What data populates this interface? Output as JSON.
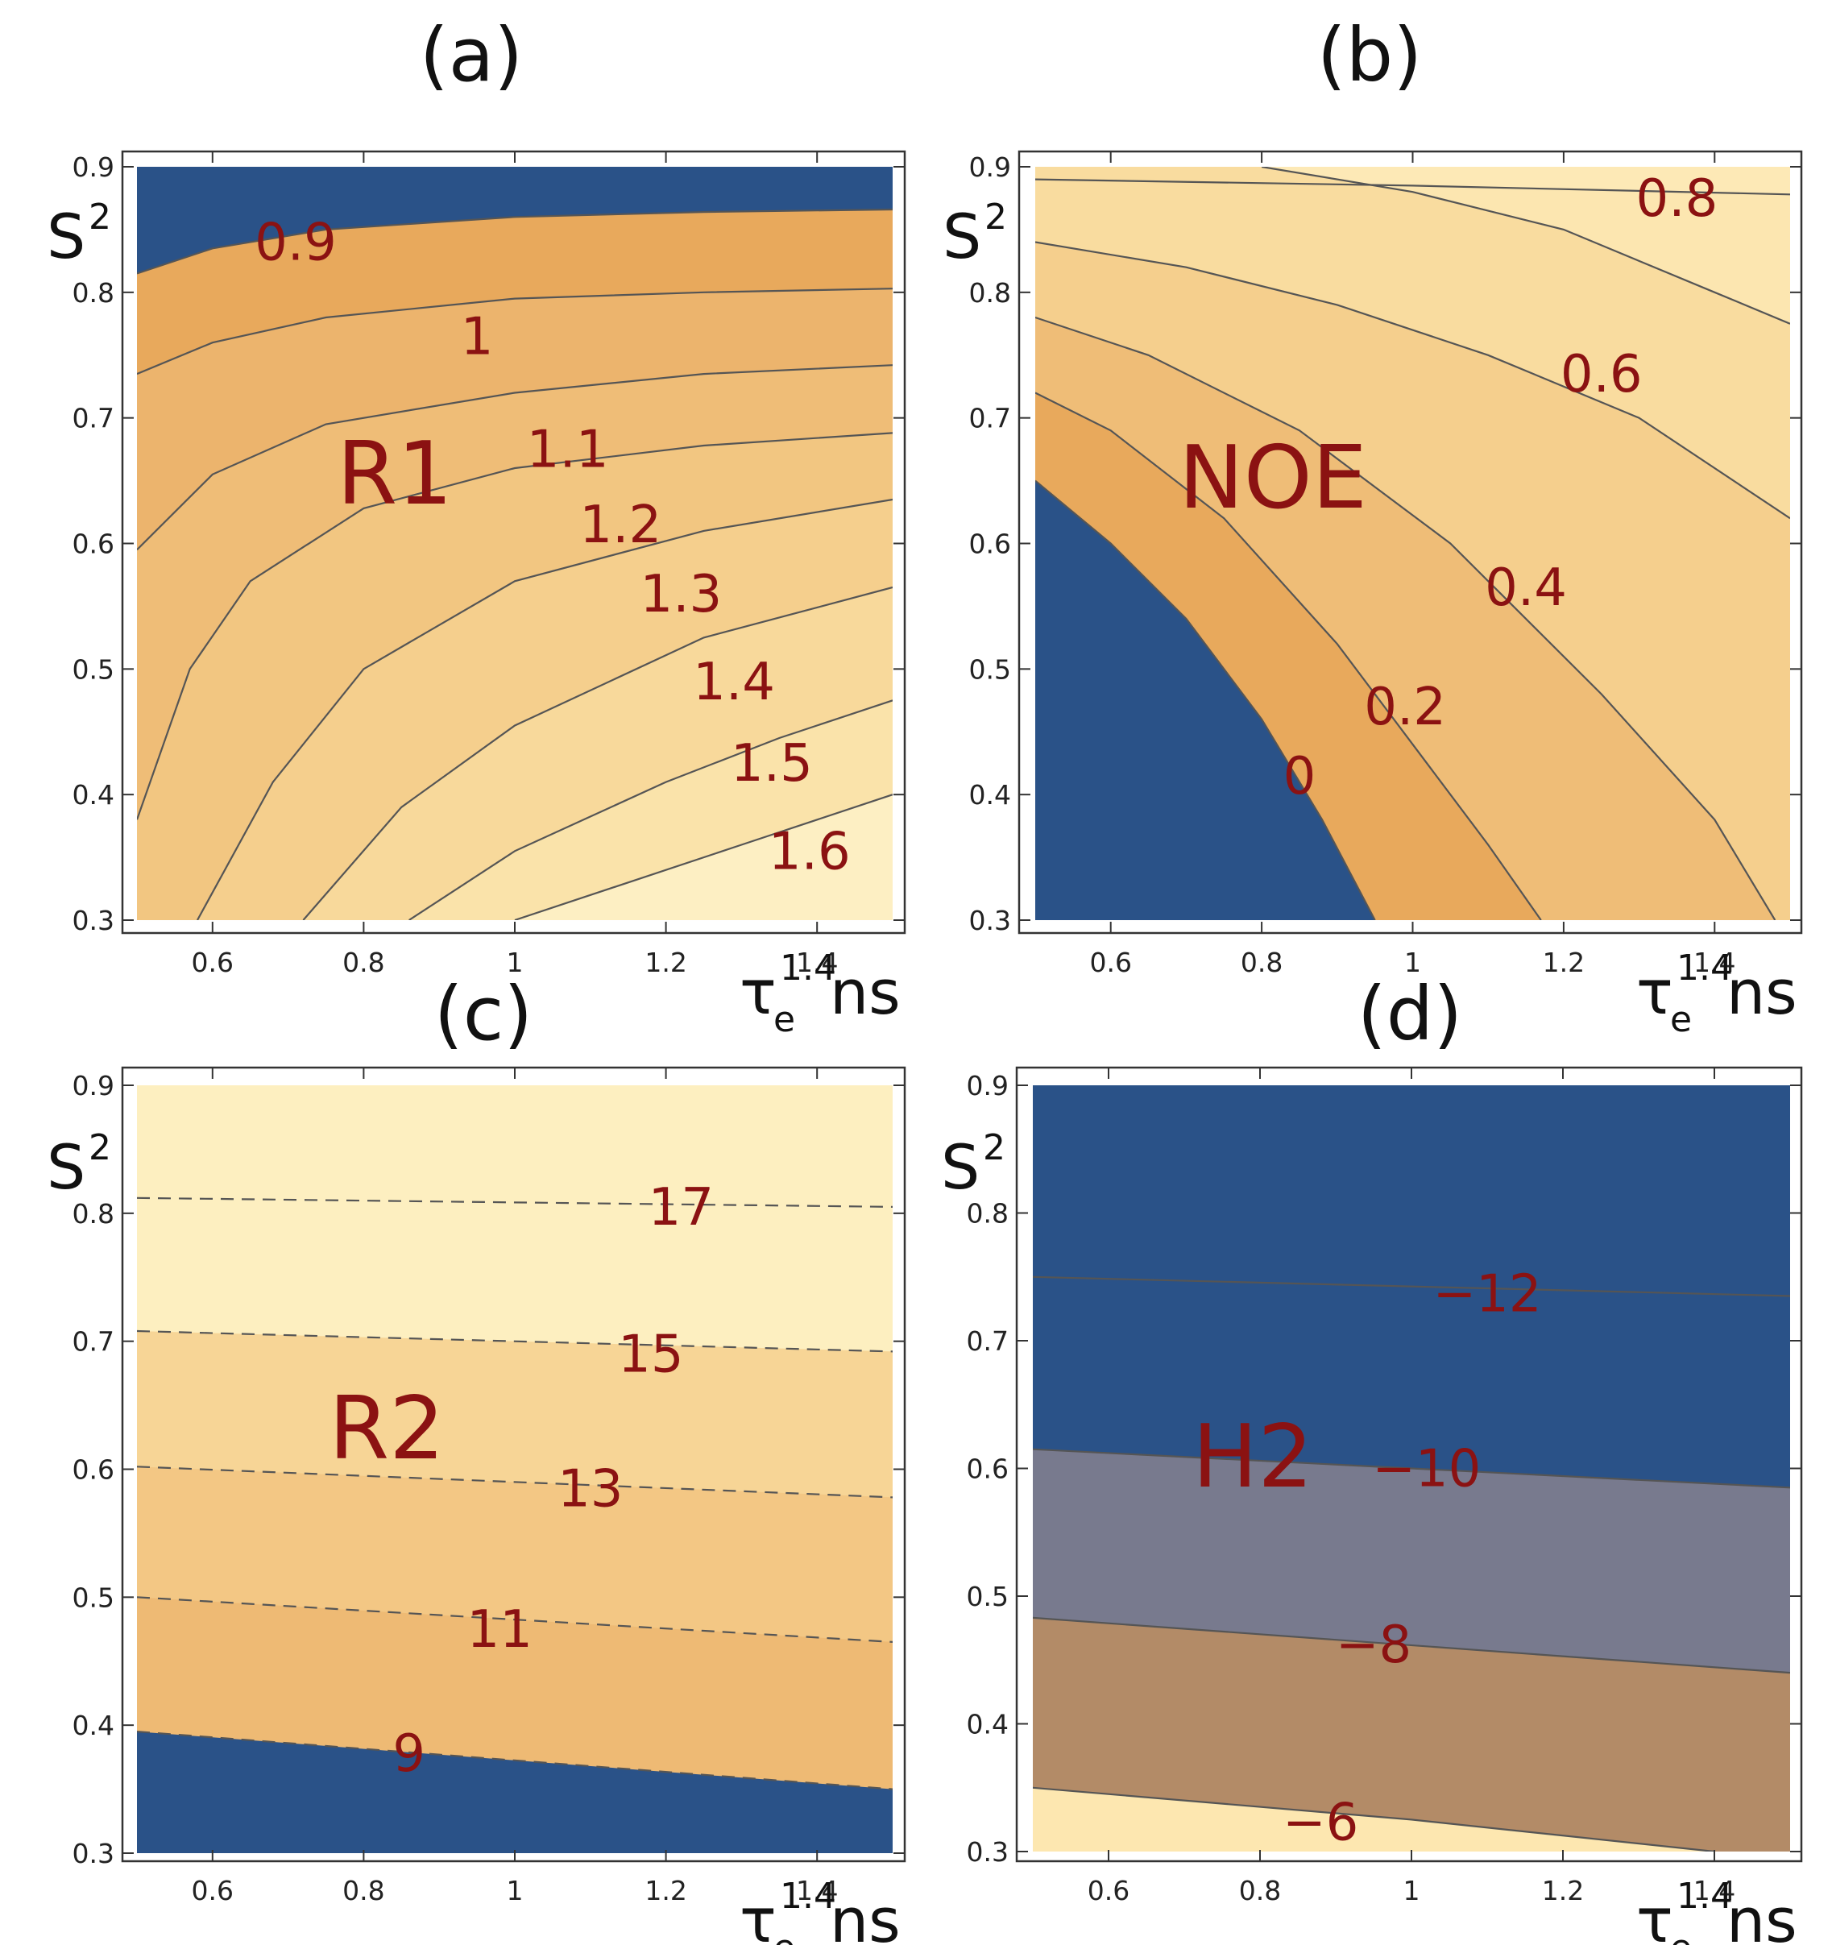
{
  "chart_data": [
    {
      "type": "contour",
      "panel": "(a)",
      "title": "R1",
      "xlabel": "τ",
      "xlabel_sub": "e",
      "xlabel_sup": "1.4",
      "xlabel_unit": "ns",
      "ylabel": "S",
      "ylabel_sup": "2",
      "xlim": [
        0.5,
        1.5
      ],
      "ylim": [
        0.3,
        0.9
      ],
      "xticks": [
        "0.6",
        "0.8",
        "1",
        "1.2",
        "1.4"
      ],
      "yticks": [
        "0.3",
        "0.4",
        "0.5",
        "0.6",
        "0.7",
        "0.8",
        "0.9"
      ],
      "line_style": "solid",
      "contours": [
        {
          "label": "0.9",
          "points": [
            [
              0.5,
              0.815
            ],
            [
              0.6,
              0.835
            ],
            [
              0.75,
              0.85
            ],
            [
              1.0,
              0.86
            ],
            [
              1.25,
              0.864
            ],
            [
              1.5,
              0.866
            ]
          ]
        },
        {
          "label": "1",
          "points": [
            [
              0.5,
              0.735
            ],
            [
              0.6,
              0.76
            ],
            [
              0.75,
              0.78
            ],
            [
              1.0,
              0.795
            ],
            [
              1.25,
              0.8
            ],
            [
              1.5,
              0.803
            ]
          ]
        },
        {
          "label": "1.1",
          "points": [
            [
              0.5,
              0.595
            ],
            [
              0.6,
              0.655
            ],
            [
              0.75,
              0.695
            ],
            [
              1.0,
              0.72
            ],
            [
              1.25,
              0.735
            ],
            [
              1.5,
              0.742
            ]
          ]
        },
        {
          "label": "1.2",
          "points": [
            [
              0.5,
              0.38
            ],
            [
              0.57,
              0.5
            ],
            [
              0.65,
              0.57
            ],
            [
              0.8,
              0.628
            ],
            [
              1.0,
              0.66
            ],
            [
              1.25,
              0.678
            ],
            [
              1.5,
              0.688
            ]
          ]
        },
        {
          "label": "1.3",
          "points": [
            [
              0.58,
              0.3
            ],
            [
              0.68,
              0.41
            ],
            [
              0.8,
              0.5
            ],
            [
              1.0,
              0.57
            ],
            [
              1.25,
              0.61
            ],
            [
              1.5,
              0.635
            ]
          ]
        },
        {
          "label": "1.4",
          "points": [
            [
              0.72,
              0.3
            ],
            [
              0.85,
              0.39
            ],
            [
              1.0,
              0.455
            ],
            [
              1.25,
              0.525
            ],
            [
              1.5,
              0.565
            ]
          ]
        },
        {
          "label": "1.5",
          "points": [
            [
              0.86,
              0.3
            ],
            [
              1.0,
              0.355
            ],
            [
              1.2,
              0.41
            ],
            [
              1.35,
              0.445
            ],
            [
              1.5,
              0.475
            ]
          ]
        },
        {
          "label": "1.6",
          "points": [
            [
              1.0,
              0.3
            ],
            [
              1.15,
              0.33
            ],
            [
              1.3,
              0.36
            ],
            [
              1.5,
              0.4
            ]
          ]
        }
      ],
      "colors": [
        "#2a5288",
        "#e8a95c",
        "#ecb46d",
        "#efbd77",
        "#f2c681",
        "#f5cf8d",
        "#f8d99b",
        "#fae3aa",
        "#fdefc3"
      ],
      "label_positions": [
        [
          0.71,
          0.84
        ],
        [
          0.95,
          0.765
        ],
        [
          1.07,
          0.675
        ],
        [
          1.14,
          0.615
        ],
        [
          1.22,
          0.56
        ],
        [
          1.29,
          0.49
        ],
        [
          1.34,
          0.425
        ],
        [
          1.39,
          0.355
        ]
      ]
    },
    {
      "type": "contour",
      "panel": "(b)",
      "title": "NOE",
      "xlabel": "τ",
      "xlabel_sub": "e",
      "xlabel_sup": "1.4",
      "xlabel_unit": "ns",
      "ylabel": "S",
      "ylabel_sup": "2",
      "xlim": [
        0.5,
        1.5
      ],
      "ylim": [
        0.3,
        0.9
      ],
      "xticks": [
        "0.6",
        "0.8",
        "1",
        "1.2",
        "1.4"
      ],
      "yticks": [
        "0.3",
        "0.4",
        "0.5",
        "0.6",
        "0.7",
        "0.8",
        "0.9"
      ],
      "line_style": "solid",
      "contours": [
        {
          "label": "0",
          "points": [
            [
              0.5,
              0.65
            ],
            [
              0.6,
              0.6
            ],
            [
              0.7,
              0.54
            ],
            [
              0.8,
              0.46
            ],
            [
              0.88,
              0.38
            ],
            [
              0.95,
              0.3
            ]
          ]
        },
        {
          "label": "0.2",
          "points": [
            [
              0.5,
              0.72
            ],
            [
              0.6,
              0.69
            ],
            [
              0.75,
              0.62
            ],
            [
              0.9,
              0.52
            ],
            [
              1.0,
              0.44
            ],
            [
              1.1,
              0.36
            ],
            [
              1.17,
              0.3
            ]
          ]
        },
        {
          "label": "",
          "points": [
            [
              0.5,
              0.78
            ],
            [
              0.65,
              0.75
            ],
            [
              0.85,
              0.69
            ],
            [
              1.05,
              0.6
            ],
            [
              1.25,
              0.48
            ],
            [
              1.4,
              0.38
            ],
            [
              1.48,
              0.3
            ]
          ]
        },
        {
          "label": "0.4",
          "points": [
            [
              0.5,
              0.84
            ],
            [
              0.7,
              0.82
            ],
            [
              0.9,
              0.79
            ],
            [
              1.1,
              0.75
            ],
            [
              1.3,
              0.7
            ],
            [
              1.5,
              0.62
            ]
          ]
        },
        {
          "label": "0.6",
          "points": [
            [
              0.8,
              0.9
            ],
            [
              1.0,
              0.88
            ],
            [
              1.2,
              0.85
            ],
            [
              1.4,
              0.8
            ],
            [
              1.5,
              0.775
            ]
          ]
        },
        {
          "label": "0.8",
          "points": [
            [
              0.5,
              0.89
            ],
            [
              1.0,
              0.885
            ],
            [
              1.5,
              0.878
            ]
          ]
        }
      ],
      "colors": [
        "#2a5288",
        "#e8a95c",
        "#efbd77",
        "#f5cf8d",
        "#f9dc9f",
        "#fce6b0",
        "#fde9b6"
      ],
      "label_positions": [
        [
          0.85,
          0.415
        ],
        [
          0.99,
          0.47
        ],
        [
          1.15,
          0.565
        ],
        [
          1.25,
          0.735
        ],
        [
          1.35,
          0.875
        ]
      ]
    },
    {
      "type": "contour",
      "panel": "(c)",
      "title": "R2",
      "xlabel": "τ",
      "xlabel_sub": "e",
      "xlabel_sup": "1.4",
      "xlabel_unit": "ns",
      "ylabel": "S",
      "ylabel_sup": "2",
      "xlim": [
        0.5,
        1.5
      ],
      "ylim": [
        0.3,
        0.9
      ],
      "xticks": [
        "0.6",
        "0.8",
        "1",
        "1.2",
        "1.4"
      ],
      "yticks": [
        "0.3",
        "0.4",
        "0.5",
        "0.6",
        "0.7",
        "0.8",
        "0.9"
      ],
      "line_style": "dashed",
      "contours": [
        {
          "label": "9",
          "points": [
            [
              0.5,
              0.395
            ],
            [
              1.5,
              0.35
            ]
          ]
        },
        {
          "label": "11",
          "points": [
            [
              0.5,
              0.5
            ],
            [
              1.5,
              0.465
            ]
          ]
        },
        {
          "label": "13",
          "points": [
            [
              0.5,
              0.602
            ],
            [
              1.5,
              0.578
            ]
          ]
        },
        {
          "label": "15",
          "points": [
            [
              0.5,
              0.708
            ],
            [
              1.5,
              0.692
            ]
          ]
        },
        {
          "label": "17",
          "points": [
            [
              0.5,
              0.812
            ],
            [
              1.5,
              0.805
            ]
          ]
        }
      ],
      "colors": [
        "#2a5288",
        "#e8a95c",
        "#eeba74",
        "#f3c784",
        "#f7d596",
        "#fdefc0"
      ],
      "label_positions": [
        [
          0.86,
          0.378
        ],
        [
          0.98,
          0.475
        ],
        [
          1.1,
          0.585
        ],
        [
          1.18,
          0.69
        ],
        [
          1.22,
          0.805
        ]
      ]
    },
    {
      "type": "contour",
      "panel": "(d)",
      "title": "H2",
      "xlabel": "τ",
      "xlabel_sub": "e",
      "xlabel_sup": "1.4",
      "xlabel_unit": "ns",
      "ylabel": "S",
      "ylabel_sup": "2",
      "xlim": [
        0.5,
        1.5
      ],
      "ylim": [
        0.3,
        0.9
      ],
      "xticks": [
        "0.6",
        "0.8",
        "1",
        "1.2",
        "1.4"
      ],
      "yticks": [
        "0.3",
        "0.4",
        "0.5",
        "0.6",
        "0.7",
        "0.8",
        "0.9"
      ],
      "line_style": "solid",
      "contours": [
        {
          "label": "−6",
          "points": [
            [
              0.5,
              0.35
            ],
            [
              1.0,
              0.325
            ],
            [
              1.4,
              0.3
            ]
          ]
        },
        {
          "label": "−8",
          "points": [
            [
              0.5,
              0.483
            ],
            [
              1.5,
              0.44
            ]
          ]
        },
        {
          "label": "−10",
          "points": [
            [
              0.5,
              0.615
            ],
            [
              1.5,
              0.585
            ]
          ]
        },
        {
          "label": "−12",
          "points": [
            [
              0.5,
              0.75
            ],
            [
              1.5,
              0.735
            ]
          ]
        }
      ],
      "colors": [
        "#fde7b0",
        "#e6a24f",
        "#b38b67",
        "#787a8e",
        "#2a5288"
      ],
      "colors_order": "bottom_to_top",
      "label_positions": [
        [
          0.88,
          0.323
        ],
        [
          0.95,
          0.462
        ],
        [
          1.02,
          0.6
        ],
        [
          1.1,
          0.737
        ]
      ]
    }
  ]
}
